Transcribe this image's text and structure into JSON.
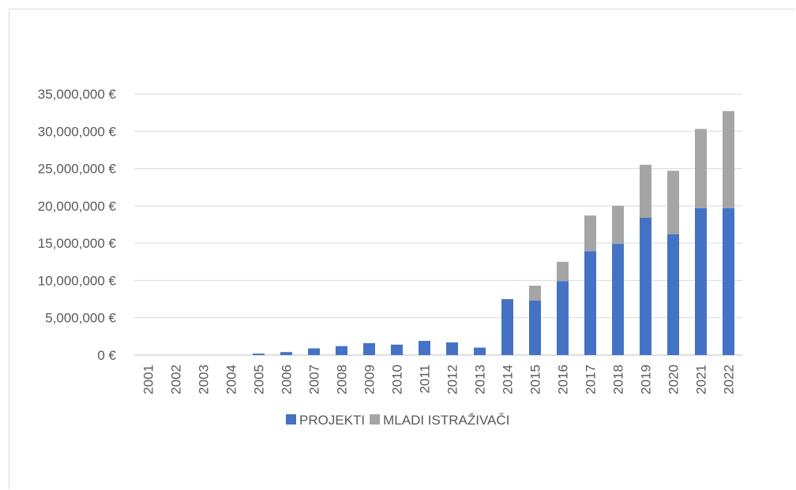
{
  "chart_data": {
    "type": "bar",
    "stacked": true,
    "title": "",
    "xlabel": "",
    "ylabel": "",
    "ylim": [
      0,
      35000000
    ],
    "yticks": [
      "0 €",
      "5,000,000 €",
      "10,000,000 €",
      "15,000,000 €",
      "20,000,000 €",
      "25,000,000 €",
      "30,000,000 €",
      "35,000,000 €"
    ],
    "ytick_values": [
      0,
      5000000,
      10000000,
      15000000,
      20000000,
      25000000,
      30000000,
      35000000
    ],
    "grid": true,
    "legend_position": "bottom",
    "categories": [
      "2001",
      "2002",
      "2003",
      "2004",
      "2005",
      "2006",
      "2007",
      "2008",
      "2009",
      "2010",
      "2011",
      "2012",
      "2013",
      "2014",
      "2015",
      "2016",
      "2017",
      "2018",
      "2019",
      "2020",
      "2021",
      "2022"
    ],
    "series": [
      {
        "name": "PROJEKTI",
        "color": "#4472c4",
        "values": [
          0,
          0,
          0,
          0,
          200000,
          400000,
          900000,
          1200000,
          1600000,
          1400000,
          1900000,
          1700000,
          1000000,
          7500000,
          7300000,
          9900000,
          13900000,
          14900000,
          18400000,
          16200000,
          19700000,
          19700000
        ]
      },
      {
        "name": "MLADI ISTRAŽIVAČI",
        "color": "#a5a5a5",
        "values": [
          0,
          0,
          0,
          0,
          0,
          0,
          0,
          0,
          0,
          0,
          0,
          0,
          0,
          0,
          2000000,
          2600000,
          4800000,
          5100000,
          7100000,
          8500000,
          10600000,
          13000000
        ]
      }
    ]
  }
}
